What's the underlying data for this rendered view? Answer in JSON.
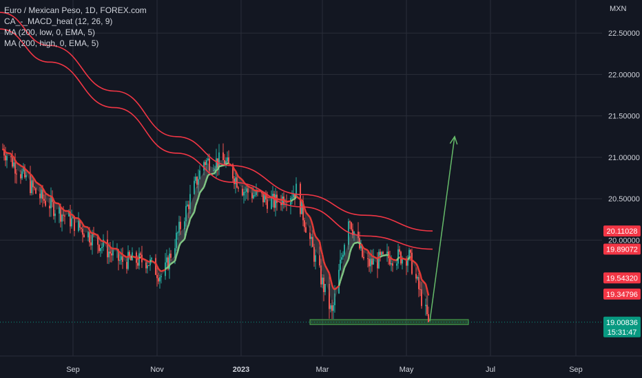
{
  "legend": {
    "title": "Euro / Mexican Peso, 1D, FOREX.com",
    "indicator_macd": "CA_-_MACD_heat (12, 26, 9)",
    "indicator_ma_low": "MA (200, low, 0, EMA, 5)",
    "indicator_ma_high": "MA (200, high, 0, EMA, 5)"
  },
  "axis": {
    "currency": "MXN",
    "y_ticks": [
      "22.50000",
      "22.00000",
      "21.50000",
      "21.00000",
      "20.50000",
      "20.00000"
    ],
    "x_ticks": [
      "Sep",
      "Nov",
      "2023",
      "Mar",
      "May",
      "Jul",
      "Sep"
    ]
  },
  "price_tags": [
    {
      "label": "20.11028",
      "value": 20.11028,
      "color": "#f23645"
    },
    {
      "label": "19.89072",
      "value": 19.89072,
      "color": "#f23645"
    },
    {
      "label": "19.54320",
      "value": 19.5432,
      "color": "#f23645"
    },
    {
      "label": "19.34796",
      "value": 19.34796,
      "color": "#f23645"
    },
    {
      "label": "19.00836",
      "value": 19.00836,
      "color": "#089981"
    }
  ],
  "countdown": "15:31:47",
  "colors": {
    "background": "#131722",
    "grid": "#2a2e39",
    "up_candle": "#26a69a",
    "down_candle": "#ef5350",
    "ma_line": "#f23645",
    "macd_line": "#81c784",
    "support_zone": "#4caf50",
    "arrow": "#66bb6a"
  },
  "chart_data": {
    "type": "candlestick",
    "title": "Euro / Mexican Peso, 1D, FOREX.com",
    "y_unit": "MXN",
    "ylim": [
      18.6,
      22.9
    ],
    "x_range": [
      "2022-07-10",
      "2023-09-20"
    ],
    "grid": true,
    "legend_position": "top-left",
    "key_points": [
      {
        "date": "2022-07-12",
        "close": 21.1
      },
      {
        "date": "2022-08-06",
        "close": 20.55
      },
      {
        "date": "2022-09-10",
        "close": 20.1
      },
      {
        "date": "2022-10-05",
        "close": 19.75
      },
      {
        "date": "2022-10-25",
        "close": 19.75
      },
      {
        "date": "2022-11-05",
        "close": 19.55
      },
      {
        "date": "2022-11-25",
        "close": 20.5
      },
      {
        "date": "2022-12-05",
        "close": 20.95
      },
      {
        "date": "2022-12-20",
        "close": 20.95
      },
      {
        "date": "2023-01-03",
        "close": 20.6
      },
      {
        "date": "2023-01-25",
        "close": 20.45
      },
      {
        "date": "2023-02-10",
        "close": 20.6
      },
      {
        "date": "2023-02-25",
        "close": 19.7
      },
      {
        "date": "2023-03-08",
        "close": 19.1
      },
      {
        "date": "2023-03-20",
        "close": 20.3
      },
      {
        "date": "2023-04-01",
        "close": 19.7
      },
      {
        "date": "2023-04-20",
        "close": 19.8
      },
      {
        "date": "2023-05-03",
        "close": 19.8
      },
      {
        "date": "2023-05-17",
        "close": 19.01
      }
    ],
    "series": [
      {
        "name": "MA (200, high, 0, EMA, 5)",
        "points": [
          {
            "date": "2022-07-10",
            "value": 22.75
          },
          {
            "date": "2022-08-15",
            "value": 22.35
          },
          {
            "date": "2022-10-01",
            "value": 21.8
          },
          {
            "date": "2022-11-15",
            "value": 21.25
          },
          {
            "date": "2022-12-25",
            "value": 20.9
          },
          {
            "date": "2023-02-15",
            "value": 20.55
          },
          {
            "date": "2023-04-01",
            "value": 20.3
          },
          {
            "date": "2023-05-20",
            "value": 20.11028
          }
        ]
      },
      {
        "name": "MA (200, low, 0, EMA, 5)",
        "points": [
          {
            "date": "2022-07-10",
            "value": 22.55
          },
          {
            "date": "2022-08-15",
            "value": 22.15
          },
          {
            "date": "2022-10-01",
            "value": 21.6
          },
          {
            "date": "2022-11-15",
            "value": 21.05
          },
          {
            "date": "2022-12-25",
            "value": 20.7
          },
          {
            "date": "2023-02-15",
            "value": 20.4
          },
          {
            "date": "2023-04-01",
            "value": 20.05
          },
          {
            "date": "2023-05-20",
            "value": 19.89072
          }
        ]
      }
    ],
    "support_zone": {
      "from": "2023-02-20",
      "to": "2023-06-15",
      "low": 18.98,
      "high": 19.04
    },
    "projection_arrow": {
      "from": {
        "date": "2023-05-18",
        "value": 19.02
      },
      "to": {
        "date": "2023-06-05",
        "value": 21.25
      }
    }
  }
}
